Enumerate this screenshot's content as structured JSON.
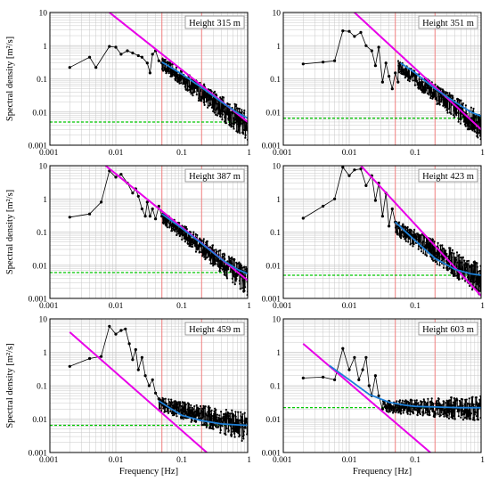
{
  "figure": {
    "ylabel": "Spectral density [m²/s]",
    "xlabel": "Frequency [Hz]"
  },
  "colors": {
    "spectrum": "#000000",
    "power_law": "#e800e8",
    "fit": "#1e7fd6",
    "noise": "#00c800",
    "bands": "#f08080",
    "grid": "#c8c8c8"
  },
  "chart_data": [
    {
      "type": "line",
      "title": "Height 315 m",
      "xscale": "log",
      "yscale": "log",
      "xlim": [
        0.001,
        1
      ],
      "ylim": [
        0.001,
        10
      ],
      "xticks": [
        "0.001",
        "0.01",
        "0.1",
        "1"
      ],
      "yticks": [
        "0.001",
        "0.01",
        "0.1",
        "1",
        "10"
      ],
      "vlines": [
        0.05,
        0.2
      ],
      "noise_level": 0.005,
      "power_law": {
        "x": [
          0.008,
          1
        ],
        "y": [
          10,
          0.005
        ]
      },
      "fit": {
        "x": [
          0.05,
          0.1,
          0.2,
          0.4,
          0.7,
          1
        ],
        "y": [
          0.32,
          0.14,
          0.055,
          0.02,
          0.0095,
          0.0065
        ]
      },
      "spectrum": {
        "x": [
          0.002,
          0.004,
          0.005,
          0.008,
          0.01,
          0.012,
          0.015,
          0.018,
          0.022,
          0.025,
          0.03,
          0.033,
          0.036,
          0.04,
          0.045,
          0.05
        ],
        "y": [
          0.22,
          0.45,
          0.22,
          0.95,
          0.9,
          0.55,
          0.7,
          0.6,
          0.5,
          0.45,
          0.3,
          0.15,
          0.55,
          0.7,
          0.35,
          0.3
        ],
        "tail_from": [
          0.05,
          0.3
        ],
        "tail_to": [
          1,
          0.004
        ],
        "tail_spread": 0.32
      }
    },
    {
      "type": "line",
      "title": "Height 351 m",
      "xscale": "log",
      "yscale": "log",
      "xlim": [
        0.001,
        1
      ],
      "ylim": [
        0.001,
        10
      ],
      "xticks": [
        "0.001",
        "0.01",
        "0.1",
        "1"
      ],
      "yticks": [
        "0.001",
        "0.01",
        "0.1",
        "1",
        "10"
      ],
      "vlines": [
        0.05,
        0.2
      ],
      "noise_level": 0.0065,
      "power_law": {
        "x": [
          0.012,
          1
        ],
        "y": [
          10,
          0.003
        ]
      },
      "fit": {
        "x": [
          0.06,
          0.1,
          0.2,
          0.4,
          0.7,
          1
        ],
        "y": [
          0.3,
          0.15,
          0.05,
          0.02,
          0.01,
          0.0075
        ]
      },
      "spectrum": {
        "x": [
          0.002,
          0.004,
          0.006,
          0.008,
          0.01,
          0.012,
          0.015,
          0.018,
          0.022,
          0.025,
          0.028,
          0.032,
          0.036,
          0.04,
          0.045,
          0.05,
          0.055
        ],
        "y": [
          0.28,
          0.32,
          0.35,
          2.8,
          2.7,
          1.9,
          2.5,
          1.0,
          0.7,
          0.25,
          0.9,
          0.08,
          0.3,
          0.12,
          0.05,
          0.15,
          0.08
        ],
        "tail_from": [
          0.055,
          0.25
        ],
        "tail_to": [
          1,
          0.004
        ],
        "tail_spread": 0.3
      }
    },
    {
      "type": "line",
      "title": "Height 387 m",
      "xscale": "log",
      "yscale": "log",
      "xlim": [
        0.001,
        1
      ],
      "ylim": [
        0.001,
        10
      ],
      "xticks": [
        "0.001",
        "0.01",
        "0.1",
        "1"
      ],
      "yticks": [
        "0.001",
        "0.01",
        "0.1",
        "1",
        "10"
      ],
      "vlines": [
        0.05,
        0.2
      ],
      "noise_level": 0.006,
      "power_law": {
        "x": [
          0.007,
          1
        ],
        "y": [
          10,
          0.0035
        ]
      },
      "fit": {
        "x": [
          0.05,
          0.1,
          0.2,
          0.4,
          0.7,
          1
        ],
        "y": [
          0.35,
          0.13,
          0.045,
          0.015,
          0.0075,
          0.0055
        ]
      },
      "spectrum": {
        "x": [
          0.002,
          0.004,
          0.006,
          0.008,
          0.01,
          0.012,
          0.015,
          0.018,
          0.02,
          0.022,
          0.025,
          0.028,
          0.03,
          0.033,
          0.036,
          0.04,
          0.045,
          0.05
        ],
        "y": [
          0.28,
          0.35,
          0.8,
          7.0,
          4.5,
          5.5,
          3.0,
          1.5,
          2.0,
          1.2,
          0.5,
          0.3,
          0.8,
          0.3,
          0.5,
          0.25,
          0.6,
          0.3
        ],
        "tail_from": [
          0.05,
          0.3
        ],
        "tail_to": [
          1,
          0.0035
        ],
        "tail_spread": 0.3
      }
    },
    {
      "type": "line",
      "title": "Height 423 m",
      "xscale": "log",
      "yscale": "log",
      "xlim": [
        0.001,
        1
      ],
      "ylim": [
        0.001,
        10
      ],
      "xticks": [
        "0.001",
        "0.01",
        "0.1",
        "1"
      ],
      "yticks": [
        "0.001",
        "0.01",
        "0.1",
        "1",
        "10"
      ],
      "vlines": [
        0.05,
        0.2
      ],
      "noise_level": 0.005,
      "power_law": {
        "x": [
          0.015,
          1
        ],
        "y": [
          10,
          0.0012
        ]
      },
      "fit": {
        "x": [
          0.05,
          0.1,
          0.2,
          0.4,
          0.7,
          1
        ],
        "y": [
          0.2,
          0.055,
          0.016,
          0.0075,
          0.0055,
          0.005
        ]
      },
      "spectrum": {
        "x": [
          0.002,
          0.004,
          0.006,
          0.008,
          0.01,
          0.012,
          0.015,
          0.018,
          0.022,
          0.025,
          0.028,
          0.032,
          0.036,
          0.04,
          0.045,
          0.05
        ],
        "y": [
          0.26,
          0.6,
          1.0,
          9.0,
          5.0,
          7.5,
          8.0,
          2.5,
          5.0,
          0.9,
          3.0,
          0.3,
          1.5,
          0.15,
          0.5,
          0.2
        ],
        "tail_from": [
          0.05,
          0.15
        ],
        "tail_to": [
          1,
          0.004
        ],
        "tail_spread": 0.35
      }
    },
    {
      "type": "line",
      "title": "Height 459 m",
      "xscale": "log",
      "yscale": "log",
      "xlim": [
        0.001,
        1
      ],
      "ylim": [
        0.001,
        10
      ],
      "xticks": [
        "0.001",
        "0.01",
        "0.1",
        "1"
      ],
      "yticks": [
        "0.001",
        "0.01",
        "0.1",
        "1",
        "10"
      ],
      "vlines": [
        0.05,
        0.2
      ],
      "noise_level": 0.0065,
      "power_law": {
        "x": [
          0.002,
          0.24
        ],
        "y": [
          4.0,
          0.001
        ]
      },
      "fit": {
        "x": [
          0.045,
          0.07,
          0.1,
          0.2,
          0.4,
          0.7,
          1
        ],
        "y": [
          0.035,
          0.02,
          0.013,
          0.009,
          0.0072,
          0.0067,
          0.0065
        ]
      },
      "spectrum": {
        "x": [
          0.002,
          0.004,
          0.006,
          0.008,
          0.01,
          0.012,
          0.014,
          0.016,
          0.018,
          0.02,
          0.022,
          0.025,
          0.028,
          0.032,
          0.036,
          0.04,
          0.045
        ],
        "y": [
          0.38,
          0.65,
          0.75,
          6.0,
          3.5,
          4.5,
          5.0,
          1.8,
          0.6,
          1.2,
          0.3,
          0.7,
          0.2,
          0.1,
          0.15,
          0.06,
          0.04
        ],
        "tail_from": [
          0.045,
          0.03
        ],
        "tail_to": [
          1,
          0.006
        ],
        "tail_spread": 0.32
      }
    },
    {
      "type": "line",
      "title": "Height 603 m",
      "xscale": "log",
      "yscale": "log",
      "xlim": [
        0.001,
        1
      ],
      "ylim": [
        0.001,
        10
      ],
      "xticks": [
        "0.001",
        "0.01",
        "0.1",
        "1"
      ],
      "yticks": [
        "0.001",
        "0.01",
        "0.1",
        "1",
        "10"
      ],
      "vlines": [
        0.05,
        0.2
      ],
      "noise_level": 0.022,
      "power_law": {
        "x": [
          0.002,
          0.17
        ],
        "y": [
          1.8,
          0.001
        ]
      },
      "fit": {
        "x": [
          0.005,
          0.01,
          0.02,
          0.04,
          0.07,
          0.1,
          0.2,
          0.5,
          1
        ],
        "y": [
          0.4,
          0.15,
          0.055,
          0.032,
          0.026,
          0.024,
          0.023,
          0.022,
          0.022
        ]
      },
      "spectrum": {
        "x": [
          0.002,
          0.004,
          0.006,
          0.008,
          0.01,
          0.012,
          0.014,
          0.016,
          0.018,
          0.02,
          0.022,
          0.025,
          0.028,
          0.032
        ],
        "y": [
          0.17,
          0.18,
          0.15,
          1.3,
          0.3,
          0.7,
          0.15,
          0.3,
          0.7,
          0.1,
          0.05,
          0.2,
          0.05,
          0.02
        ],
        "tail_from": [
          0.032,
          0.025
        ],
        "tail_to": [
          1,
          0.022
        ],
        "tail_spread": 0.28
      }
    }
  ]
}
